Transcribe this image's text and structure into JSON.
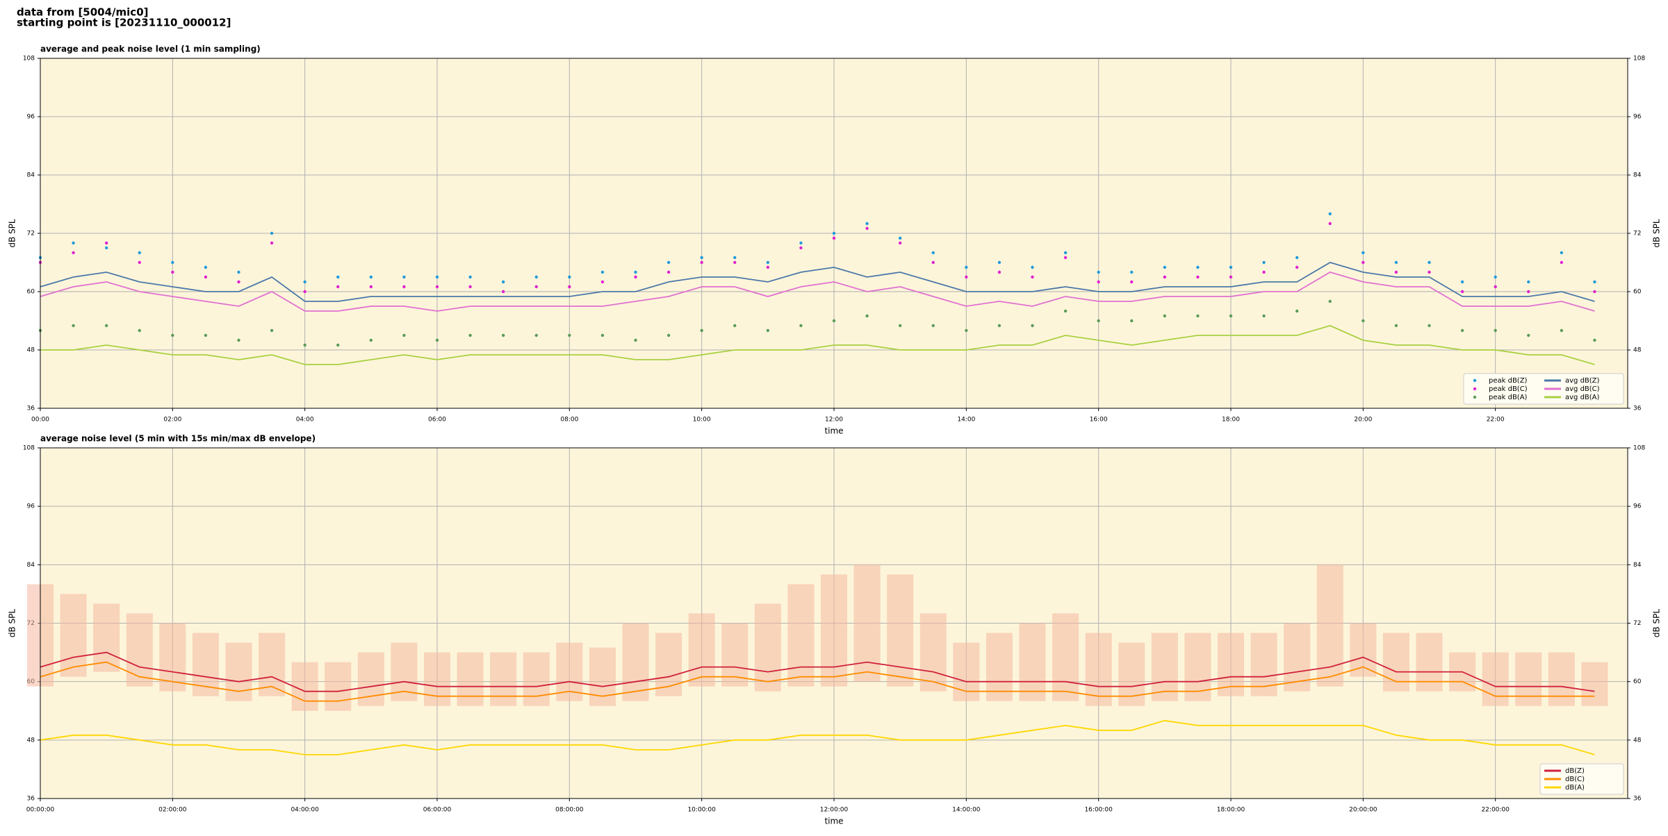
{
  "header": {
    "lines": [
      "data from [5004/mic0]",
      "starting point is [20231110_000012]"
    ]
  },
  "chart_data": [
    {
      "type": "line",
      "title": "average and peak noise level (1 min sampling)",
      "xlabel": "time",
      "ylabel": "dB SPL",
      "grid": true,
      "legend": "lower right",
      "background": "#fdf5da",
      "xlim": [
        0,
        24
      ],
      "ylim": [
        36,
        108
      ],
      "xticks": [
        {
          "value": 0,
          "label": "00:00"
        },
        {
          "value": 2,
          "label": "02:00"
        },
        {
          "value": 4,
          "label": "04:00"
        },
        {
          "value": 6,
          "label": "06:00"
        },
        {
          "value": 8,
          "label": "08:00"
        },
        {
          "value": 10,
          "label": "10:00"
        },
        {
          "value": 12,
          "label": "12:00"
        },
        {
          "value": 14,
          "label": "14:00"
        },
        {
          "value": 16,
          "label": "16:00"
        },
        {
          "value": 18,
          "label": "18:00"
        },
        {
          "value": 20,
          "label": "20:00"
        },
        {
          "value": 22,
          "label": "22:00"
        }
      ],
      "yticks": [
        36,
        48,
        60,
        72,
        84,
        96,
        108
      ],
      "x": [
        0,
        0.5,
        1,
        1.5,
        2,
        2.5,
        3,
        3.5,
        4,
        4.5,
        5,
        5.5,
        6,
        6.5,
        7,
        7.5,
        8,
        8.5,
        9,
        9.5,
        10,
        10.5,
        11,
        11.5,
        12,
        12.5,
        13,
        13.5,
        14,
        14.5,
        15,
        15.5,
        16,
        16.5,
        17,
        17.5,
        18,
        18.5,
        19,
        19.5,
        20,
        20.5,
        21,
        21.5,
        22,
        22.5,
        23,
        23.5
      ],
      "series": [
        {
          "name": "peak dB(Z)",
          "mark": "dot",
          "color": "#1f9bdc",
          "values": [
            67,
            70,
            69,
            68,
            66,
            65,
            64,
            72,
            62,
            63,
            63,
            63,
            63,
            63,
            62,
            63,
            63,
            64,
            64,
            66,
            67,
            67,
            66,
            70,
            72,
            74,
            71,
            68,
            65,
            66,
            65,
            68,
            64,
            64,
            65,
            65,
            65,
            66,
            67,
            76,
            68,
            66,
            66,
            62,
            63,
            62,
            68,
            62
          ]
        },
        {
          "name": "peak dB(C)",
          "mark": "dot",
          "color": "#e020d0",
          "values": [
            66,
            68,
            70,
            66,
            64,
            63,
            62,
            70,
            60,
            61,
            61,
            61,
            61,
            61,
            60,
            61,
            61,
            62,
            63,
            64,
            66,
            66,
            65,
            69,
            71,
            73,
            70,
            66,
            63,
            64,
            63,
            67,
            62,
            62,
            63,
            63,
            63,
            64,
            65,
            74,
            66,
            64,
            64,
            60,
            61,
            60,
            66,
            60
          ]
        },
        {
          "name": "peak dB(A)",
          "mark": "dot",
          "color": "#5a9a5a",
          "values": [
            52,
            53,
            53,
            52,
            51,
            51,
            50,
            52,
            49,
            49,
            50,
            51,
            50,
            51,
            51,
            51,
            51,
            51,
            50,
            51,
            52,
            53,
            52,
            53,
            54,
            55,
            53,
            53,
            52,
            53,
            53,
            56,
            54,
            54,
            55,
            55,
            55,
            55,
            56,
            58,
            54,
            53,
            53,
            52,
            52,
            51,
            52,
            50
          ]
        },
        {
          "name": "avg dB(Z)",
          "mark": "line",
          "color": "#4a78a8",
          "values": [
            61,
            63,
            64,
            62,
            61,
            60,
            60,
            63,
            58,
            58,
            59,
            59,
            59,
            59,
            59,
            59,
            59,
            60,
            60,
            62,
            63,
            63,
            62,
            64,
            65,
            63,
            64,
            62,
            60,
            60,
            60,
            61,
            60,
            60,
            61,
            61,
            61,
            62,
            62,
            66,
            64,
            63,
            63,
            59,
            59,
            59,
            60,
            58
          ]
        },
        {
          "name": "avg dB(C)",
          "mark": "line",
          "color": "#e070d0",
          "values": [
            59,
            61,
            62,
            60,
            59,
            58,
            57,
            60,
            56,
            56,
            57,
            57,
            56,
            57,
            57,
            57,
            57,
            57,
            58,
            59,
            61,
            61,
            59,
            61,
            62,
            60,
            61,
            59,
            57,
            58,
            57,
            59,
            58,
            58,
            59,
            59,
            59,
            60,
            60,
            64,
            62,
            61,
            61,
            57,
            57,
            57,
            58,
            56
          ]
        },
        {
          "name": "avg dB(A)",
          "mark": "line",
          "color": "#a8d040",
          "values": [
            48,
            48,
            49,
            48,
            47,
            47,
            46,
            47,
            45,
            45,
            46,
            47,
            46,
            47,
            47,
            47,
            47,
            47,
            46,
            46,
            47,
            48,
            48,
            48,
            49,
            49,
            48,
            48,
            48,
            49,
            49,
            51,
            50,
            49,
            50,
            51,
            51,
            51,
            51,
            53,
            50,
            49,
            49,
            48,
            48,
            47,
            47,
            45
          ]
        }
      ]
    },
    {
      "type": "line",
      "title": "average noise level (5 min with 15s min/max dB envelope)",
      "xlabel": "time",
      "ylabel": "dB SPL",
      "grid": true,
      "legend": "lower right",
      "background": "#fdf5da",
      "xlim": [
        0,
        24
      ],
      "ylim": [
        36,
        108
      ],
      "xticks": [
        {
          "value": 0,
          "label": "00:00:00"
        },
        {
          "value": 2,
          "label": "02:00:00"
        },
        {
          "value": 4,
          "label": "04:00:00"
        },
        {
          "value": 6,
          "label": "06:00:00"
        },
        {
          "value": 8,
          "label": "08:00:00"
        },
        {
          "value": 10,
          "label": "10:00:00"
        },
        {
          "value": 12,
          "label": "12:00:00"
        },
        {
          "value": 14,
          "label": "14:00:00"
        },
        {
          "value": 16,
          "label": "16:00:00"
        },
        {
          "value": 18,
          "label": "18:00:00"
        },
        {
          "value": 20,
          "label": "20:00:00"
        },
        {
          "value": 22,
          "label": "22:00:00"
        }
      ],
      "yticks": [
        36,
        48,
        60,
        72,
        84,
        96,
        108
      ],
      "x": [
        0,
        0.5,
        1,
        1.5,
        2,
        2.5,
        3,
        3.5,
        4,
        4.5,
        5,
        5.5,
        6,
        6.5,
        7,
        7.5,
        8,
        8.5,
        9,
        9.5,
        10,
        10.5,
        11,
        11.5,
        12,
        12.5,
        13,
        13.5,
        14,
        14.5,
        15,
        15.5,
        16,
        16.5,
        17,
        17.5,
        18,
        18.5,
        19,
        19.5,
        20,
        20.5,
        21,
        21.5,
        22,
        22.5,
        23,
        23.5
      ],
      "envelope": {
        "color": "#f4b8a0",
        "lower": [
          59,
          61,
          62,
          59,
          58,
          57,
          56,
          57,
          54,
          54,
          55,
          56,
          55,
          55,
          55,
          55,
          56,
          55,
          56,
          57,
          59,
          59,
          58,
          59,
          59,
          60,
          59,
          58,
          56,
          56,
          56,
          56,
          55,
          55,
          56,
          56,
          57,
          57,
          58,
          59,
          61,
          58,
          58,
          58,
          55,
          55,
          55,
          55
        ],
        "upper": [
          80,
          78,
          76,
          74,
          72,
          70,
          68,
          70,
          64,
          64,
          66,
          68,
          66,
          66,
          66,
          66,
          68,
          67,
          72,
          70,
          74,
          72,
          76,
          80,
          82,
          84,
          82,
          74,
          68,
          70,
          72,
          74,
          70,
          68,
          70,
          70,
          70,
          70,
          72,
          84,
          72,
          70,
          70,
          66,
          66,
          66,
          66,
          64
        ]
      },
      "series": [
        {
          "name": "dB(Z)",
          "mark": "line",
          "color": "#d0203c",
          "values": [
            63,
            65,
            66,
            63,
            62,
            61,
            60,
            61,
            58,
            58,
            59,
            60,
            59,
            59,
            59,
            59,
            60,
            59,
            60,
            61,
            63,
            63,
            62,
            63,
            63,
            64,
            63,
            62,
            60,
            60,
            60,
            60,
            59,
            59,
            60,
            60,
            61,
            61,
            62,
            63,
            65,
            62,
            62,
            62,
            59,
            59,
            59,
            58
          ]
        },
        {
          "name": "dB(C)",
          "mark": "line",
          "color": "#ff8c00",
          "values": [
            61,
            63,
            64,
            61,
            60,
            59,
            58,
            59,
            56,
            56,
            57,
            58,
            57,
            57,
            57,
            57,
            58,
            57,
            58,
            59,
            61,
            61,
            60,
            61,
            61,
            62,
            61,
            60,
            58,
            58,
            58,
            58,
            57,
            57,
            58,
            58,
            59,
            59,
            60,
            61,
            63,
            60,
            60,
            60,
            57,
            57,
            57,
            57
          ]
        },
        {
          "name": "dB(A)",
          "mark": "line",
          "color": "#ffd700",
          "values": [
            48,
            49,
            49,
            48,
            47,
            47,
            46,
            46,
            45,
            45,
            46,
            47,
            46,
            47,
            47,
            47,
            47,
            47,
            46,
            46,
            47,
            48,
            48,
            49,
            49,
            49,
            48,
            48,
            48,
            49,
            50,
            51,
            50,
            50,
            52,
            51,
            51,
            51,
            51,
            51,
            51,
            49,
            48,
            48,
            47,
            47,
            47,
            45
          ]
        }
      ]
    }
  ]
}
